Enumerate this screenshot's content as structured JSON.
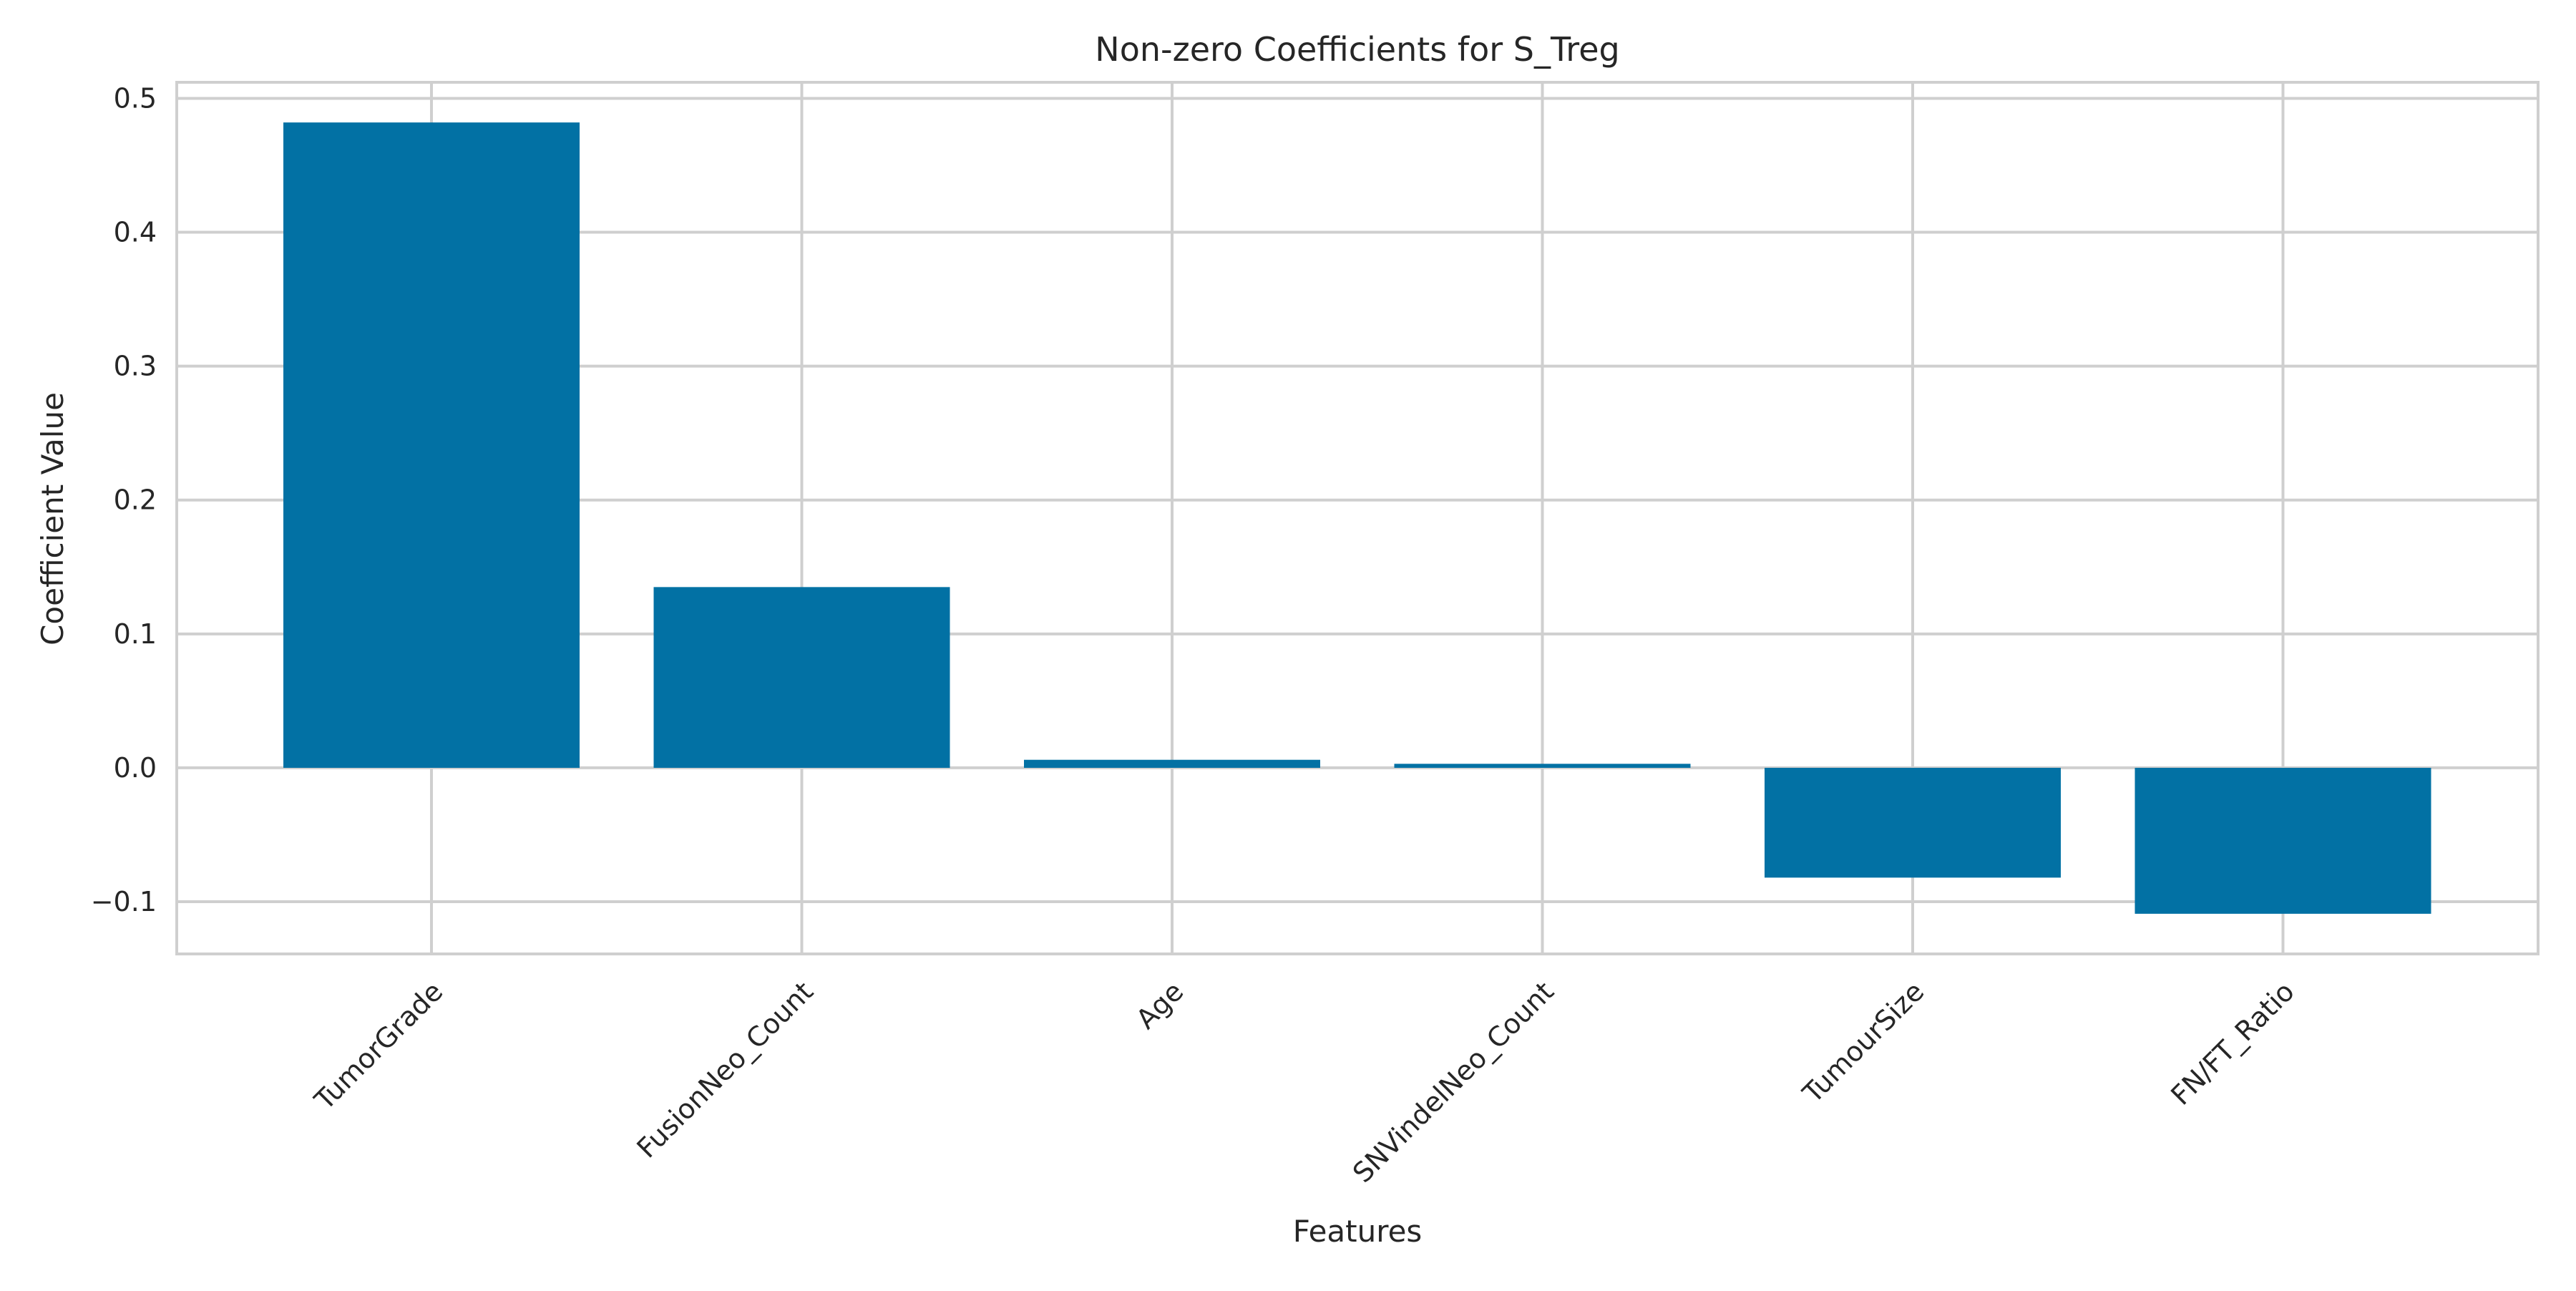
{
  "chart_data": {
    "type": "bar",
    "title": "Non-zero Coefficients for S_Treg",
    "xlabel": "Features",
    "ylabel": "Coefficient Value",
    "categories": [
      "TumorGrade",
      "FusionNeo_Count",
      "Age",
      "SNVindelNeo_Count",
      "TumourSize",
      "FN/FT_Ratio"
    ],
    "values": [
      0.482,
      0.135,
      0.006,
      0.003,
      -0.082,
      -0.109
    ],
    "ylim": [
      -0.139,
      0.512
    ],
    "yticks": [
      -0.1,
      0.0,
      0.1,
      0.2,
      0.3,
      0.4,
      0.5
    ],
    "ytick_labels": [
      "−0.1",
      "0.0",
      "0.1",
      "0.2",
      "0.3",
      "0.4",
      "0.5"
    ],
    "grid": true,
    "legend": "none",
    "colors": {
      "bar": "#0271a4",
      "grid": "#cfcfcf",
      "frame": "#cfcfcf",
      "text": "#262626"
    }
  }
}
